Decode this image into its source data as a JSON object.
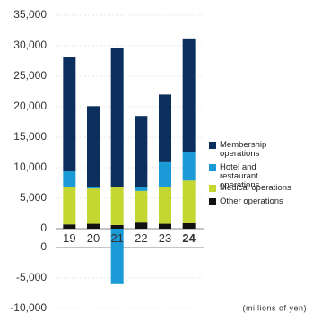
{
  "chart_data": {
    "type": "stacked_bar",
    "unit_note": "(millions of yen)",
    "categories": [
      "19",
      "20",
      "21",
      "22",
      "23",
      "24"
    ],
    "series": [
      {
        "name": "Membership operations",
        "color": "#0d2f5e",
        "values": [
          18800,
          13200,
          22800,
          11700,
          11100,
          18700
        ]
      },
      {
        "name": "Hotel and restaurant operations",
        "color": "#1a9ad6",
        "values": [
          2500,
          300,
          -6000,
          600,
          4000,
          4600
        ]
      },
      {
        "name": "Medical operations",
        "color": "#c3d730",
        "values": [
          6200,
          5800,
          6300,
          5200,
          6100,
          7000
        ]
      },
      {
        "name": "Other operations",
        "color": "#111111",
        "values": [
          700,
          800,
          600,
          1000,
          800,
          900
        ]
      }
    ],
    "ylim": [
      -10000,
      35000
    ],
    "yticks": [
      {
        "value": -10000,
        "label": "-10,000"
      },
      {
        "value": -5000,
        "label": "-5,000"
      },
      0,
      {
        "value": 5000,
        "label": "5,000"
      },
      {
        "value": 10000,
        "label": "10,000"
      },
      {
        "value": 15000,
        "label": "15,000"
      },
      {
        "value": 20000,
        "label": "20,000"
      },
      {
        "value": 25000,
        "label": "25,000"
      },
      {
        "value": 30000,
        "label": "30,000"
      },
      {
        "value": 35000,
        "label": "35,000"
      }
    ],
    "grid": true
  }
}
